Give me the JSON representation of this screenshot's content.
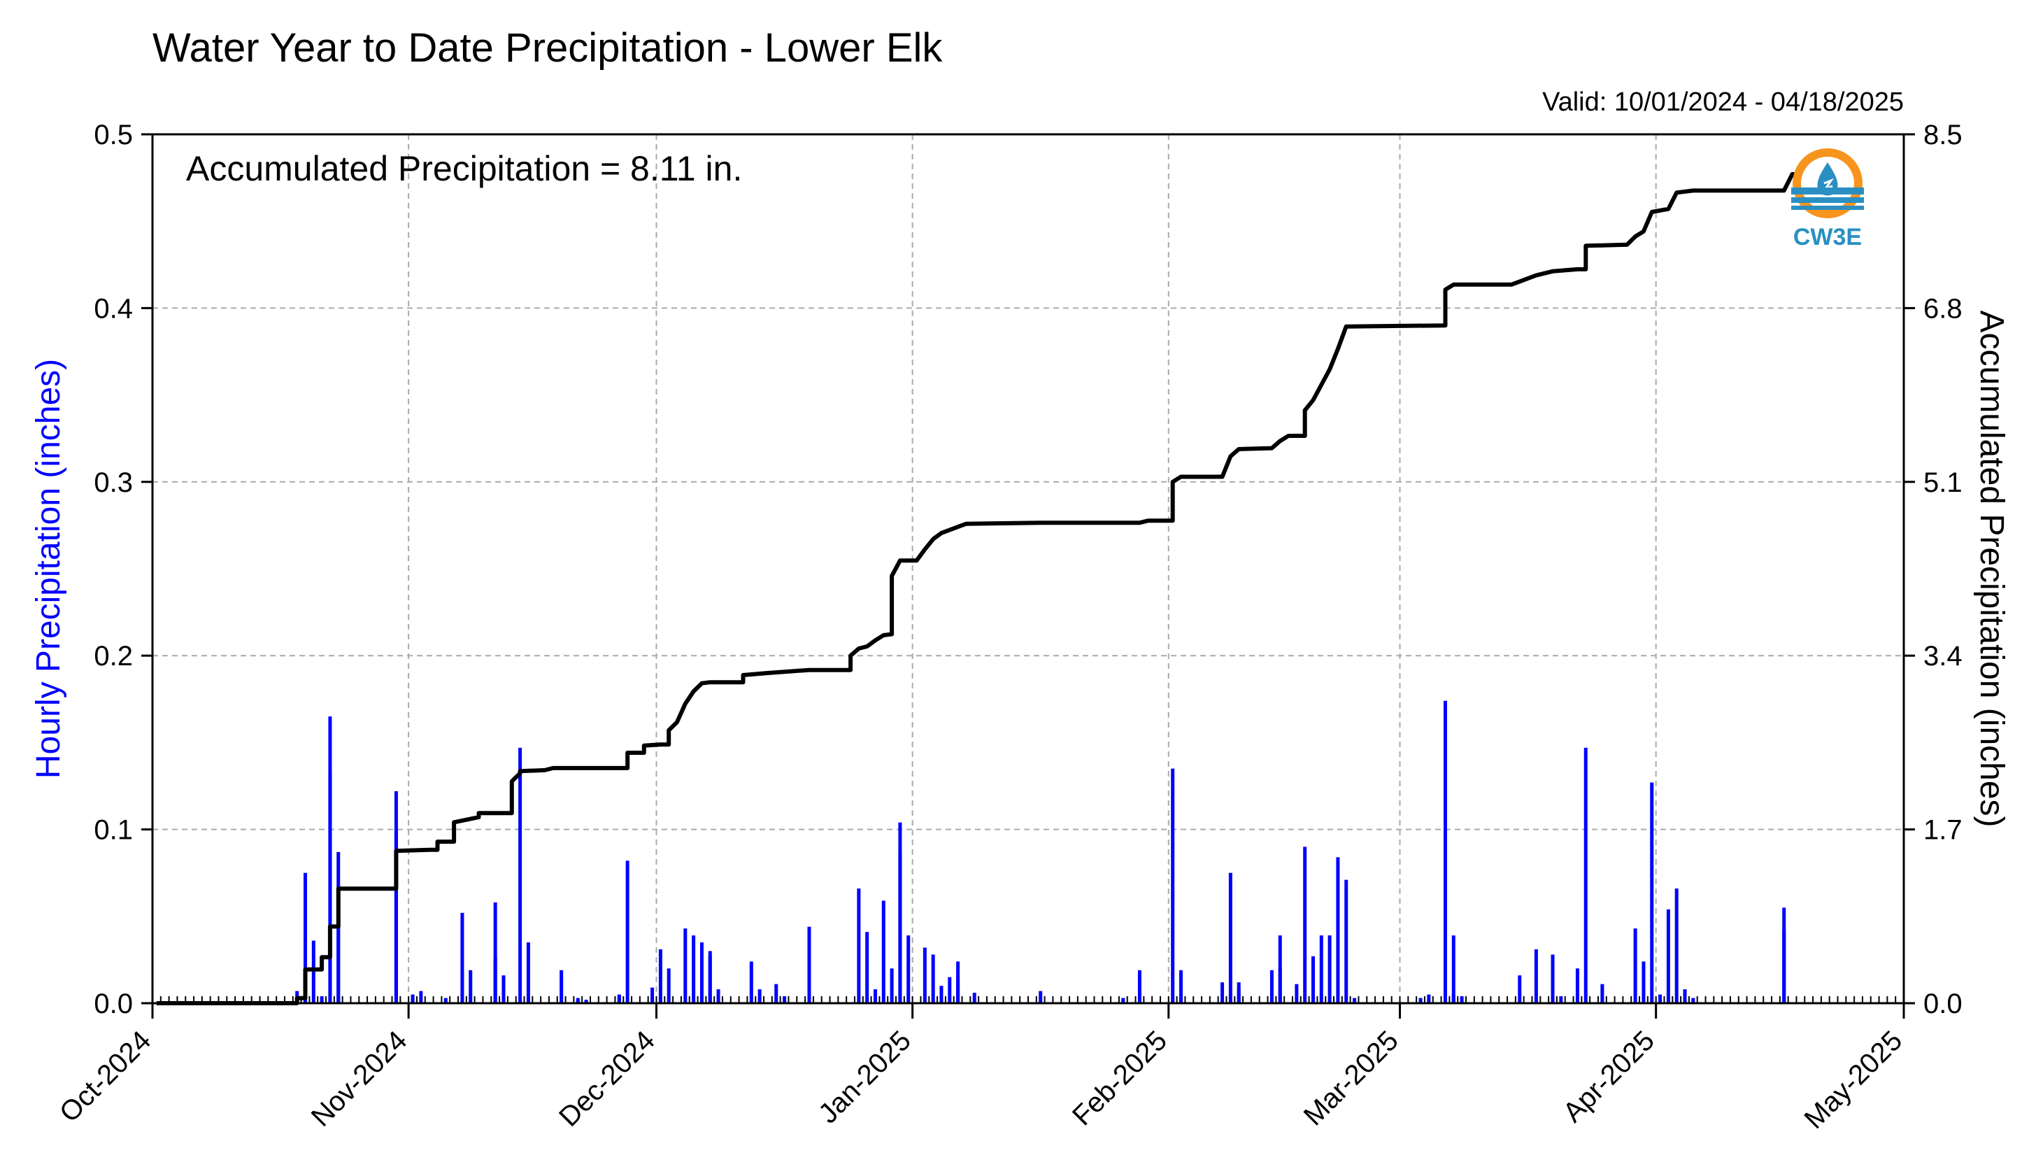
{
  "chart_data": {
    "type": "bar+line",
    "title": "Water Year to Date Precipitation - Lower Elk",
    "valid_text": "Valid: 10/01/2024 - 04/18/2025",
    "annotation": "Accumulated Precipitation = 8.11 in.",
    "logo_text": "CW3E",
    "ylabel_left": "Hourly Precipitation (inches)",
    "ylabel_right": "Accumulated Precipitation (inches)",
    "ylim_left": [
      0,
      0.5
    ],
    "ylim_right": [
      0,
      8.5
    ],
    "xlim": [
      "2024-10-01",
      "2025-05-01"
    ],
    "left_ticks": [
      "0.0",
      "0.1",
      "0.2",
      "0.3",
      "0.4",
      "0.5"
    ],
    "right_ticks": [
      "0.0",
      "1.7",
      "3.4",
      "5.1",
      "6.8",
      "8.5"
    ],
    "x_ticks": [
      {
        "date": "2024-10-01",
        "label": "Oct-2024"
      },
      {
        "date": "2024-11-01",
        "label": "Nov-2024"
      },
      {
        "date": "2024-12-01",
        "label": "Dec-2024"
      },
      {
        "date": "2025-01-01",
        "label": "Jan-2025"
      },
      {
        "date": "2025-02-01",
        "label": "Feb-2025"
      },
      {
        "date": "2025-03-01",
        "label": "Mar-2025"
      },
      {
        "date": "2025-04-01",
        "label": "Apr-2025"
      },
      {
        "date": "2025-05-01",
        "label": "May-2025"
      }
    ],
    "grid": true,
    "colors": {
      "hourly": "#0000ff",
      "accumulated": "#000000",
      "grid": "#aaaaaa",
      "logo_orange": "#f7941d",
      "logo_blue": "#2a8fc2"
    },
    "hourly_series": {
      "name": "Hourly Precipitation",
      "points": [
        [
          "2024-10-18",
          0.007
        ],
        [
          "2024-10-19",
          0.075
        ],
        [
          "2024-10-19",
          0.047
        ],
        [
          "2024-10-20",
          0.036
        ],
        [
          "2024-10-21",
          0.004
        ],
        [
          "2024-10-22",
          0.133
        ],
        [
          "2024-10-22",
          0.165
        ],
        [
          "2024-10-23",
          0.087
        ],
        [
          "2024-10-23",
          0.06
        ],
        [
          "2024-10-30",
          0.122
        ],
        [
          "2024-10-30",
          0.1
        ],
        [
          "2024-11-01",
          0.005
        ],
        [
          "2024-11-01",
          0.003
        ],
        [
          "2024-11-02",
          0.007
        ],
        [
          "2024-11-05",
          0.003
        ],
        [
          "2024-11-07",
          0.052
        ],
        [
          "2024-11-08",
          0.019
        ],
        [
          "2024-11-11",
          0.058
        ],
        [
          "2024-11-11",
          0.026
        ],
        [
          "2024-11-12",
          0.016
        ],
        [
          "2024-11-14",
          0.147
        ],
        [
          "2024-11-15",
          0.035
        ],
        [
          "2024-11-19",
          0.019
        ],
        [
          "2024-11-21",
          0.003
        ],
        [
          "2024-11-26",
          0.005
        ],
        [
          "2024-11-30",
          0.003
        ],
        [
          "2024-11-26",
          0.004
        ],
        [
          "2024-11-22",
          0.002
        ],
        [
          "2024-11-21",
          0.002
        ],
        [
          "2024-11-27",
          0.082
        ],
        [
          "2024-11-30",
          0.009
        ],
        [
          "2024-12-01",
          0.031
        ],
        [
          "2024-12-02",
          0.02
        ],
        [
          "2024-12-04",
          0.043
        ],
        [
          "2024-12-05",
          0.039
        ],
        [
          "2024-12-06",
          0.035
        ],
        [
          "2024-12-07",
          0.03
        ],
        [
          "2024-12-07",
          0.027
        ],
        [
          "2024-12-08",
          0.008
        ],
        [
          "2024-12-12",
          0.024
        ],
        [
          "2024-12-13",
          0.008
        ],
        [
          "2024-12-15",
          0.011
        ],
        [
          "2024-12-16",
          0.004
        ],
        [
          "2024-12-19",
          0.044
        ],
        [
          "2024-12-25",
          0.066
        ],
        [
          "2024-12-26",
          0.041
        ],
        [
          "2024-12-27",
          0.008
        ],
        [
          "2024-12-28",
          0.059
        ],
        [
          "2024-12-29",
          0.02
        ],
        [
          "2024-12-30",
          0.104
        ],
        [
          "2024-12-30",
          0.086
        ],
        [
          "2024-12-31",
          0.039
        ],
        [
          "2025-01-02",
          0.032
        ],
        [
          "2025-01-03",
          0.028
        ],
        [
          "2025-01-04",
          0.01
        ],
        [
          "2025-01-05",
          0.015
        ],
        [
          "2025-01-06",
          0.024
        ],
        [
          "2025-01-06",
          0.015
        ],
        [
          "2025-01-08",
          0.006
        ],
        [
          "2025-01-16",
          0.007
        ],
        [
          "2025-01-26",
          0.003
        ],
        [
          "2025-01-28",
          0.019
        ],
        [
          "2025-02-01",
          0.135
        ],
        [
          "2025-02-02",
          0.019
        ],
        [
          "2025-02-02",
          0.005
        ],
        [
          "2025-02-07",
          0.012
        ],
        [
          "2025-02-08",
          0.075
        ],
        [
          "2025-02-09",
          0.012
        ],
        [
          "2025-02-09",
          0.008
        ],
        [
          "2025-02-13",
          0.019
        ],
        [
          "2025-02-14",
          0.039
        ],
        [
          "2025-02-14",
          0.02
        ],
        [
          "2025-02-16",
          0.011
        ],
        [
          "2025-02-17",
          0.09
        ],
        [
          "2025-02-18",
          0.027
        ],
        [
          "2025-02-19",
          0.039
        ],
        [
          "2025-02-20",
          0.039
        ],
        [
          "2025-02-21",
          0.084
        ],
        [
          "2025-02-22",
          0.071
        ],
        [
          "2025-02-23",
          0.003
        ],
        [
          "2025-03-03",
          0.003
        ],
        [
          "2025-03-04",
          0.005
        ],
        [
          "2025-03-06",
          0.174
        ],
        [
          "2025-03-07",
          0.039
        ],
        [
          "2025-03-07",
          0.005
        ],
        [
          "2025-03-08",
          0.004
        ],
        [
          "2025-03-15",
          0.016
        ],
        [
          "2025-03-17",
          0.031
        ],
        [
          "2025-03-19",
          0.028
        ],
        [
          "2025-03-20",
          0.004
        ],
        [
          "2025-03-22",
          0.02
        ],
        [
          "2025-03-23",
          0.147
        ],
        [
          "2025-03-25",
          0.011
        ],
        [
          "2025-03-29",
          0.043
        ],
        [
          "2025-03-30",
          0.024
        ],
        [
          "2025-03-31",
          0.127
        ],
        [
          "2025-04-01",
          0.005
        ],
        [
          "2025-04-02",
          0.054
        ],
        [
          "2025-04-03",
          0.066
        ],
        [
          "2025-04-04",
          0.008
        ],
        [
          "2025-04-05",
          0.003
        ],
        [
          "2025-04-16",
          0.055
        ],
        [
          "2025-04-16",
          0.042
        ]
      ]
    },
    "accumulated_series": {
      "name": "Accumulated Precipitation",
      "points": [
        [
          "2024-10-01",
          0.0
        ],
        [
          "2024-10-18",
          0.0
        ],
        [
          "2024-10-18",
          0.05
        ],
        [
          "2024-10-19",
          0.05
        ],
        [
          "2024-10-19",
          0.33
        ],
        [
          "2024-10-21",
          0.33
        ],
        [
          "2024-10-21",
          0.45
        ],
        [
          "2024-10-22",
          0.45
        ],
        [
          "2024-10-22",
          0.75
        ],
        [
          "2024-10-23",
          0.75
        ],
        [
          "2024-10-23",
          1.12
        ],
        [
          "2024-10-30",
          1.12
        ],
        [
          "2024-10-30",
          1.49
        ],
        [
          "2024-11-03",
          1.5
        ],
        [
          "2024-11-04",
          1.5
        ],
        [
          "2024-11-04",
          1.58
        ],
        [
          "2024-11-06",
          1.58
        ],
        [
          "2024-11-06",
          1.77
        ],
        [
          "2024-11-09",
          1.82
        ],
        [
          "2024-11-09",
          1.86
        ],
        [
          "2024-11-13",
          1.86
        ],
        [
          "2024-11-13",
          2.17
        ],
        [
          "2024-11-14",
          2.25
        ],
        [
          "2024-11-14",
          2.27
        ],
        [
          "2024-11-17",
          2.28
        ],
        [
          "2024-11-18",
          2.3
        ],
        [
          "2024-11-27",
          2.3
        ],
        [
          "2024-11-27",
          2.45
        ],
        [
          "2024-11-29",
          2.45
        ],
        [
          "2024-11-29",
          2.52
        ],
        [
          "2024-12-01",
          2.53
        ],
        [
          "2024-12-02",
          2.53
        ],
        [
          "2024-12-02",
          2.67
        ],
        [
          "2024-12-03",
          2.75
        ],
        [
          "2024-12-04",
          2.93
        ],
        [
          "2024-12-05",
          3.05
        ],
        [
          "2024-12-06",
          3.13
        ],
        [
          "2024-12-07",
          3.14
        ],
        [
          "2024-12-11",
          3.14
        ],
        [
          "2024-12-11",
          3.21
        ],
        [
          "2024-12-14",
          3.23
        ],
        [
          "2024-12-19",
          3.26
        ],
        [
          "2024-12-24",
          3.26
        ],
        [
          "2024-12-24",
          3.4
        ],
        [
          "2024-12-25",
          3.47
        ],
        [
          "2024-12-26",
          3.49
        ],
        [
          "2024-12-27",
          3.55
        ],
        [
          "2024-12-28",
          3.6
        ],
        [
          "2024-12-29",
          3.61
        ],
        [
          "2024-12-29",
          4.18
        ],
        [
          "2024-12-30",
          4.33
        ],
        [
          "2025-01-01",
          4.33
        ],
        [
          "2025-01-02",
          4.44
        ],
        [
          "2025-01-03",
          4.54
        ],
        [
          "2025-01-04",
          4.6
        ],
        [
          "2025-01-06",
          4.66
        ],
        [
          "2025-01-07",
          4.69
        ],
        [
          "2025-01-16",
          4.7
        ],
        [
          "2025-01-28",
          4.7
        ],
        [
          "2025-01-29",
          4.72
        ],
        [
          "2025-02-01",
          4.72
        ],
        [
          "2025-02-01",
          5.1
        ],
        [
          "2025-02-02",
          5.15
        ],
        [
          "2025-02-07",
          5.15
        ],
        [
          "2025-02-08",
          5.35
        ],
        [
          "2025-02-09",
          5.42
        ],
        [
          "2025-02-13",
          5.43
        ],
        [
          "2025-02-14",
          5.5
        ],
        [
          "2025-02-15",
          5.55
        ],
        [
          "2025-02-17",
          5.55
        ],
        [
          "2025-02-17",
          5.8
        ],
        [
          "2025-02-18",
          5.9
        ],
        [
          "2025-02-19",
          6.05
        ],
        [
          "2025-02-20",
          6.2
        ],
        [
          "2025-02-21",
          6.4
        ],
        [
          "2025-02-22",
          6.62
        ],
        [
          "2025-03-06",
          6.63
        ],
        [
          "2025-03-06",
          6.98
        ],
        [
          "2025-03-07",
          7.03
        ],
        [
          "2025-03-14",
          7.03
        ],
        [
          "2025-03-15",
          7.06
        ],
        [
          "2025-03-17",
          7.12
        ],
        [
          "2025-03-19",
          7.16
        ],
        [
          "2025-03-22",
          7.18
        ],
        [
          "2025-03-23",
          7.18
        ],
        [
          "2025-03-23",
          7.41
        ],
        [
          "2025-03-28",
          7.42
        ],
        [
          "2025-03-29",
          7.5
        ],
        [
          "2025-03-30",
          7.55
        ],
        [
          "2025-03-31",
          7.74
        ],
        [
          "2025-04-02",
          7.77
        ],
        [
          "2025-04-03",
          7.93
        ],
        [
          "2025-04-05",
          7.95
        ],
        [
          "2025-04-16",
          7.95
        ],
        [
          "2025-04-17",
          8.11
        ],
        [
          "2025-04-18",
          8.11
        ]
      ]
    }
  }
}
